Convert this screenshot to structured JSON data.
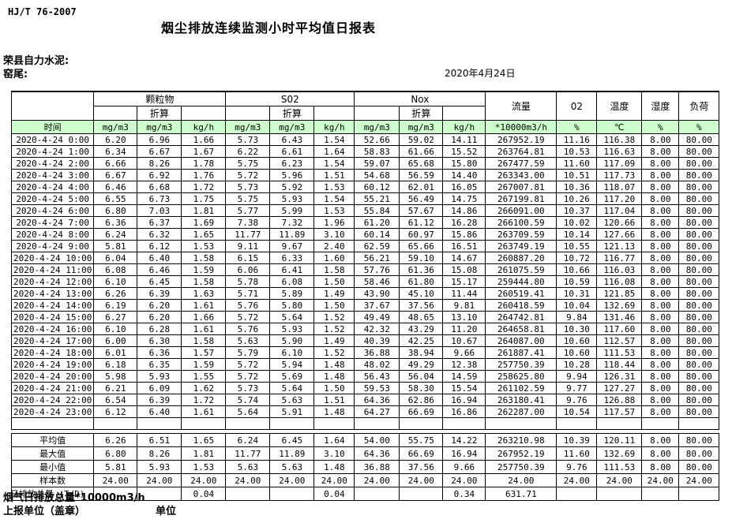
{
  "page": {
    "standard": "HJ/T  76-2007",
    "title": "烟尘排放连续监测小时平均值日报表",
    "company": "荣县自力水泥:",
    "section": "窑尾:",
    "date": "2020年4月24日"
  },
  "colors": {
    "header_row_bg": "#ccffcc",
    "border": "#000000",
    "text": "#000000"
  },
  "table": {
    "time_header": "时间",
    "groups": [
      {
        "name": "颗粒物",
        "sub": "折算"
      },
      {
        "name": "S02",
        "sub": "折算"
      },
      {
        "name": "Nox",
        "sub": "折算"
      }
    ],
    "single_columns": [
      "流量",
      "02",
      "温度",
      "湿度",
      "负荷"
    ],
    "units": [
      "mg/m3",
      "mg/m3",
      "kg/h",
      "mg/m3",
      "mg/m3",
      "kg/h",
      "mg/m3",
      "mg/m3",
      "kg/h",
      "*10000m3/h",
      "%",
      "℃",
      "%",
      "%"
    ],
    "rows": [
      {
        "time": "2020-4-24 0:00",
        "values": [
          "6.20",
          "6.96",
          "1.66",
          "5.73",
          "6.43",
          "1.54",
          "52.66",
          "59.02",
          "14.11",
          "267952.19",
          "11.16",
          "116.38",
          "8.00",
          "80.00"
        ]
      },
      {
        "time": "2020-4-24 1:00",
        "values": [
          "6.34",
          "6.67",
          "1.67",
          "6.22",
          "6.61",
          "1.64",
          "58.83",
          "61.66",
          "15.52",
          "263764.81",
          "10.53",
          "116.63",
          "8.00",
          "80.00"
        ]
      },
      {
        "time": "2020-4-24 2:00",
        "values": [
          "6.66",
          "8.26",
          "1.78",
          "5.75",
          "6.23",
          "1.54",
          "59.07",
          "65.68",
          "15.80",
          "267477.59",
          "11.60",
          "117.09",
          "8.00",
          "80.00"
        ]
      },
      {
        "time": "2020-4-24 3:00",
        "values": [
          "6.67",
          "6.92",
          "1.76",
          "5.72",
          "5.96",
          "1.51",
          "54.68",
          "56.59",
          "14.40",
          "263343.00",
          "10.51",
          "117.73",
          "8.00",
          "80.00"
        ]
      },
      {
        "time": "2020-4-24 4:00",
        "values": [
          "6.46",
          "6.68",
          "1.72",
          "5.73",
          "5.92",
          "1.53",
          "60.12",
          "62.01",
          "16.05",
          "267007.81",
          "10.36",
          "118.07",
          "8.00",
          "80.00"
        ]
      },
      {
        "time": "2020-4-24 5:00",
        "values": [
          "6.55",
          "6.73",
          "1.75",
          "5.75",
          "5.93",
          "1.54",
          "55.21",
          "56.49",
          "14.75",
          "267199.81",
          "10.26",
          "117.20",
          "8.00",
          "80.00"
        ]
      },
      {
        "time": "2020-4-24 6:00",
        "values": [
          "6.80",
          "7.03",
          "1.81",
          "5.77",
          "5.99",
          "1.53",
          "55.84",
          "57.67",
          "14.86",
          "266091.00",
          "10.37",
          "117.04",
          "8.00",
          "80.00"
        ]
      },
      {
        "time": "2020-4-24 7:00",
        "values": [
          "6.36",
          "6.37",
          "1.69",
          "7.38",
          "7.32",
          "1.96",
          "61.20",
          "61.12",
          "16.28",
          "266100.59",
          "10.02",
          "120.66",
          "8.00",
          "80.00"
        ]
      },
      {
        "time": "2020-4-24 8:00",
        "values": [
          "6.24",
          "6.32",
          "1.65",
          "11.77",
          "11.89",
          "3.10",
          "60.14",
          "60.97",
          "15.86",
          "263709.59",
          "10.14",
          "127.66",
          "8.00",
          "80.00"
        ]
      },
      {
        "time": "2020-4-24 9:00",
        "values": [
          "5.81",
          "6.12",
          "1.53",
          "9.11",
          "9.67",
          "2.40",
          "62.59",
          "65.66",
          "16.51",
          "263749.19",
          "10.55",
          "121.13",
          "8.00",
          "80.00"
        ]
      },
      {
        "time": "2020-4-24 10:00",
        "values": [
          "6.04",
          "6.40",
          "1.58",
          "6.15",
          "6.33",
          "1.60",
          "56.21",
          "59.10",
          "14.67",
          "260887.20",
          "10.72",
          "116.77",
          "8.00",
          "80.00"
        ]
      },
      {
        "time": "2020-4-24 11:00",
        "values": [
          "6.08",
          "6.46",
          "1.59",
          "6.06",
          "6.41",
          "1.58",
          "57.76",
          "61.36",
          "15.08",
          "261075.59",
          "10.66",
          "116.03",
          "8.00",
          "80.00"
        ]
      },
      {
        "time": "2020-4-24 12:00",
        "values": [
          "6.10",
          "6.45",
          "1.58",
          "5.78",
          "6.08",
          "1.50",
          "58.46",
          "61.80",
          "15.17",
          "259444.80",
          "10.59",
          "116.08",
          "8.00",
          "80.00"
        ]
      },
      {
        "time": "2020-4-24 13:00",
        "values": [
          "6.26",
          "6.39",
          "1.63",
          "5.71",
          "5.89",
          "1.49",
          "43.90",
          "45.10",
          "11.44",
          "260519.41",
          "10.31",
          "121.85",
          "8.00",
          "80.00"
        ]
      },
      {
        "time": "2020-4-24 14:00",
        "values": [
          "6.19",
          "6.20",
          "1.61",
          "5.76",
          "5.80",
          "1.50",
          "37.67",
          "37.56",
          "9.81",
          "260418.59",
          "10.04",
          "132.69",
          "8.00",
          "80.00"
        ]
      },
      {
        "time": "2020-4-24 15:00",
        "values": [
          "6.27",
          "6.20",
          "1.66",
          "5.72",
          "5.64",
          "1.52",
          "49.49",
          "48.65",
          "13.10",
          "264742.81",
          "9.84",
          "131.46",
          "8.00",
          "80.00"
        ]
      },
      {
        "time": "2020-4-24 16:00",
        "values": [
          "6.10",
          "6.28",
          "1.61",
          "5.76",
          "5.93",
          "1.52",
          "42.32",
          "43.29",
          "11.20",
          "264658.81",
          "10.30",
          "117.60",
          "8.00",
          "80.00"
        ]
      },
      {
        "time": "2020-4-24 17:00",
        "values": [
          "6.00",
          "6.30",
          "1.58",
          "5.63",
          "5.90",
          "1.49",
          "40.39",
          "42.25",
          "10.67",
          "264087.00",
          "10.60",
          "112.57",
          "8.00",
          "80.00"
        ]
      },
      {
        "time": "2020-4-24 18:00",
        "values": [
          "6.01",
          "6.36",
          "1.57",
          "5.79",
          "6.10",
          "1.52",
          "36.88",
          "38.94",
          "9.66",
          "261887.41",
          "10.60",
          "111.53",
          "8.00",
          "80.00"
        ]
      },
      {
        "time": "2020-4-24 19:00",
        "values": [
          "6.18",
          "6.35",
          "1.59",
          "5.72",
          "5.94",
          "1.48",
          "48.02",
          "49.29",
          "12.38",
          "257750.39",
          "10.28",
          "118.44",
          "8.00",
          "80.00"
        ]
      },
      {
        "time": "2020-4-24 20:00",
        "values": [
          "5.98",
          "5.93",
          "1.55",
          "5.72",
          "5.69",
          "1.48",
          "56.43",
          "56.04",
          "14.59",
          "258625.80",
          "9.94",
          "126.31",
          "8.00",
          "80.00"
        ]
      },
      {
        "time": "2020-4-24 21:00",
        "values": [
          "6.21",
          "6.09",
          "1.62",
          "5.73",
          "5.64",
          "1.50",
          "59.53",
          "58.30",
          "15.54",
          "261102.59",
          "9.77",
          "127.27",
          "8.00",
          "80.00"
        ]
      },
      {
        "time": "2020-4-24 22:00",
        "values": [
          "6.54",
          "6.39",
          "1.72",
          "5.74",
          "5.63",
          "1.51",
          "64.36",
          "62.86",
          "16.94",
          "263180.41",
          "9.76",
          "126.88",
          "8.00",
          "80.00"
        ]
      },
      {
        "time": "2020-4-24 23:00",
        "values": [
          "6.12",
          "6.40",
          "1.61",
          "5.64",
          "5.91",
          "1.48",
          "64.27",
          "66.69",
          "16.86",
          "262287.00",
          "10.54",
          "117.57",
          "8.00",
          "80.00"
        ]
      }
    ],
    "summary_rows": [
      {
        "label": "平均值",
        "align": "right",
        "values": [
          "6.26",
          "6.51",
          "1.65",
          "6.24",
          "6.45",
          "1.64",
          "54.00",
          "55.75",
          "14.22",
          "263210.98",
          "10.39",
          "120.11",
          "8.00",
          "80.00"
        ]
      },
      {
        "label": "最大值",
        "align": "right",
        "values": [
          "6.80",
          "8.26",
          "1.81",
          "11.77",
          "11.89",
          "3.10",
          "64.36",
          "66.69",
          "16.94",
          "267952.19",
          "11.60",
          "132.69",
          "8.00",
          "80.00"
        ]
      },
      {
        "label": "最小值",
        "align": "right",
        "values": [
          "5.81",
          "5.93",
          "1.53",
          "5.63",
          "5.63",
          "1.48",
          "36.88",
          "37.56",
          "9.66",
          "257750.39",
          "9.76",
          "111.53",
          "8.00",
          "80.00"
        ]
      },
      {
        "label": "样本数",
        "align": "right",
        "values": [
          "24.00",
          "24.00",
          "24.00",
          "24.00",
          "24.00",
          "24.00",
          "24.00",
          "24.00",
          "24.00",
          "24.00",
          "24.00",
          "24.00",
          "24.00",
          "24.00"
        ]
      },
      {
        "label": "日排放总量 (T/D)",
        "align": "left",
        "values": [
          "",
          "",
          "0.04",
          "",
          "",
          "0.04",
          "",
          "",
          "0.34",
          "631.71",
          "",
          "",
          "",
          ""
        ]
      }
    ]
  },
  "footer": {
    "note": "烟气日排放总量*10000m3/h",
    "report_unit": "上报单位（盖章）",
    "unit": "单位"
  }
}
